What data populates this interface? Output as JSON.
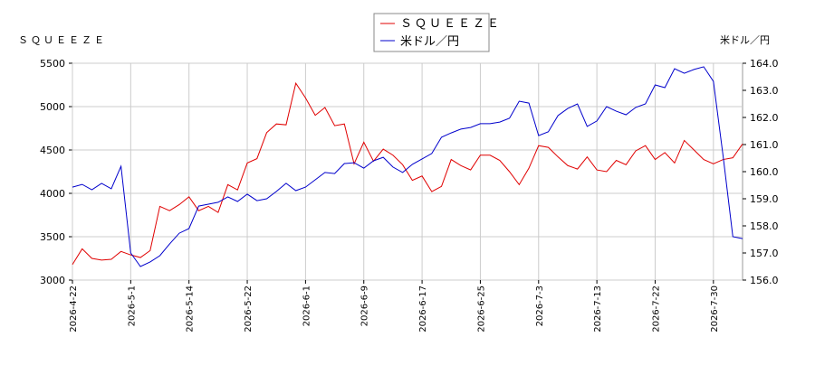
{
  "chart_data": {
    "type": "line",
    "y_label": "ＳＱＵＥＥＺＥ",
    "y2_label": "米ドル／円",
    "categories": [
      "2026-4-22",
      null,
      null,
      null,
      null,
      null,
      "2026-5-1",
      null,
      null,
      null,
      null,
      null,
      "2026-5-14",
      null,
      null,
      null,
      null,
      null,
      "2026-5-22",
      null,
      null,
      null,
      null,
      null,
      "2026-6-1",
      null,
      null,
      null,
      null,
      null,
      "2026-6-9",
      null,
      null,
      null,
      null,
      null,
      "2026-6-17",
      null,
      null,
      null,
      null,
      null,
      "2026-6-25",
      null,
      null,
      null,
      null,
      null,
      "2026-7-3",
      null,
      null,
      null,
      null,
      null,
      "2026-7-13",
      null,
      null,
      null,
      null,
      null,
      "2026-7-22",
      null,
      null,
      null,
      null,
      null,
      "2026-7-30",
      null,
      null,
      null
    ],
    "series": [
      {
        "name": "ＳＱＵＥＥＺＥ",
        "color": "#e00000",
        "values": [
          3180,
          3360,
          3250,
          3230,
          3240,
          3330,
          3290,
          3260,
          3340,
          3850,
          3800,
          3870,
          3960,
          3800,
          3850,
          3780,
          4100,
          4040,
          4350,
          4400,
          4700,
          4800,
          4790,
          5270,
          5100,
          4900,
          4990,
          4780,
          4800,
          4340,
          4590,
          4370,
          4510,
          4440,
          4330,
          4150,
          4200,
          4020,
          4080,
          4390,
          4320,
          4270,
          4440,
          4440,
          4380,
          4250,
          4100,
          4290,
          4550,
          4530,
          4420,
          4320,
          4280,
          4420,
          4270,
          4250,
          4380,
          4330,
          4490,
          4550,
          4390,
          4470,
          4350,
          4610,
          4500,
          4390,
          4340,
          4390,
          4410,
          4570
        ]
      },
      {
        "name": "米ドル／円",
        "color": "#0000cc",
        "axis": "y2",
        "values": [
          159.43,
          159.53,
          159.33,
          159.57,
          159.37,
          160.2,
          157.0,
          156.5,
          156.67,
          156.9,
          157.33,
          157.73,
          157.9,
          158.73,
          158.8,
          158.87,
          159.07,
          158.9,
          159.17,
          158.93,
          159.0,
          159.27,
          159.57,
          159.3,
          159.43,
          159.7,
          159.97,
          159.93,
          160.3,
          160.33,
          160.13,
          160.4,
          160.53,
          160.17,
          159.97,
          160.27,
          160.47,
          160.67,
          161.27,
          161.43,
          161.57,
          161.63,
          161.77,
          161.77,
          161.83,
          161.97,
          162.6,
          162.53,
          161.33,
          161.47,
          162.07,
          162.33,
          162.5,
          161.67,
          161.87,
          162.4,
          162.23,
          162.1,
          162.37,
          162.5,
          163.2,
          163.1,
          163.8,
          163.63,
          163.77,
          163.87,
          163.33,
          160.57,
          157.6,
          157.53
        ]
      }
    ],
    "ylim": [
      3000,
      5500
    ],
    "yticks": [
      3000,
      3500,
      4000,
      4500,
      5000,
      5500
    ],
    "y2lim": [
      156,
      164
    ],
    "y2ticks": [
      {
        "value": 156,
        "label": "156.0"
      },
      {
        "value": 157,
        "label": "157.0"
      },
      {
        "value": 158,
        "label": "158.0"
      },
      {
        "value": 159,
        "label": "159.0"
      },
      {
        "value": 160,
        "label": "160.0"
      },
      {
        "value": 161,
        "label": "161.0"
      },
      {
        "value": 162,
        "label": "162.0"
      },
      {
        "value": 163,
        "label": "163.0"
      },
      {
        "value": 164,
        "label": "164.0"
      }
    ],
    "grid": true
  }
}
